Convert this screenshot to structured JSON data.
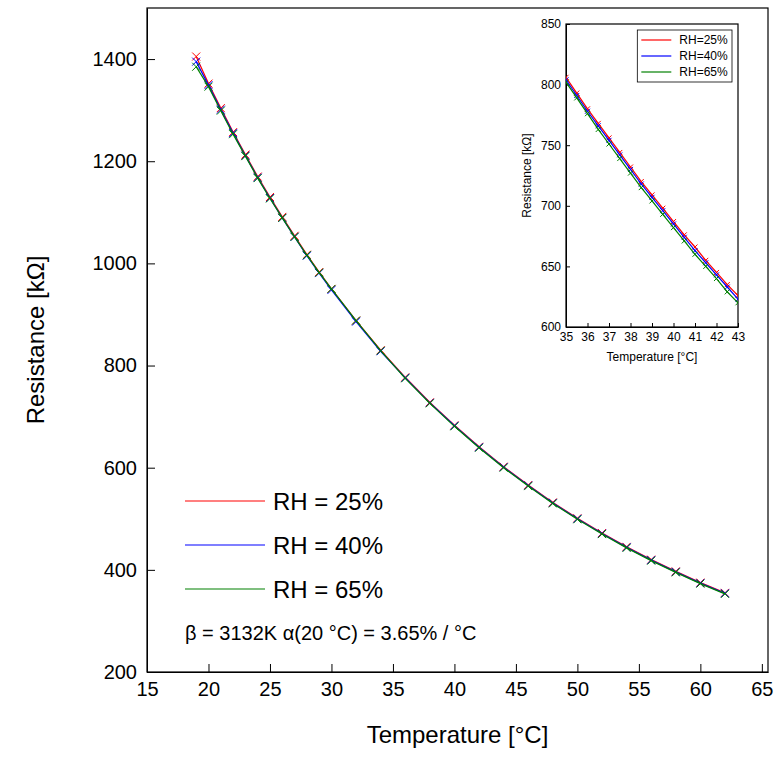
{
  "chart_data": [
    {
      "type": "line",
      "xlabel": "Temperature [°C]",
      "ylabel": "Resistance [kΩ]",
      "annotation": "β = 3132K  α(20 °C) = 3.65% / °C",
      "x": [
        19,
        20,
        21,
        22,
        23,
        24,
        25,
        26,
        27,
        28,
        29,
        30,
        32,
        34,
        36,
        38,
        40,
        42,
        44,
        46,
        48,
        50,
        52,
        54,
        56,
        58,
        60,
        62
      ],
      "series": [
        {
          "name": "RH = 25%",
          "color": "#ff0000",
          "marker": "x",
          "line_style": "solid",
          "values": [
            1405,
            1352,
            1304,
            1257,
            1213,
            1170,
            1130,
            1091,
            1054,
            1017,
            983,
            950,
            888,
            830,
            777,
            728,
            683,
            641,
            602,
            566,
            532,
            501,
            472,
            445,
            420,
            397,
            375,
            355
          ]
        },
        {
          "name": "RH = 40%",
          "color": "#0000ff",
          "marker": "x",
          "line_style": "solid",
          "values": [
            1395,
            1349,
            1301,
            1255,
            1211,
            1168,
            1128,
            1089,
            1052,
            1015,
            981,
            948,
            886,
            828,
            776,
            727,
            682,
            640,
            601,
            565,
            531,
            500,
            471,
            444,
            419,
            396,
            374,
            354
          ]
        },
        {
          "name": "RH = 65%",
          "color": "#008000",
          "marker": "x",
          "line_style": "solid",
          "values": [
            1385,
            1346,
            1299,
            1253,
            1210,
            1167,
            1127,
            1089,
            1052,
            1016,
            982,
            950,
            888,
            829,
            775,
            726,
            681,
            639,
            600,
            564,
            530,
            499,
            470,
            443,
            418,
            395,
            373,
            353
          ]
        }
      ],
      "xlim": [
        15,
        65.5
      ],
      "xticks": [
        15,
        20,
        25,
        30,
        35,
        40,
        45,
        50,
        55,
        60,
        65
      ],
      "ylim": [
        200,
        1500
      ],
      "yticks": [
        200,
        400,
        600,
        800,
        1000,
        1200,
        1400
      ],
      "legend": "lower left"
    },
    {
      "type": "line",
      "xlabel": "Temperature [°C]",
      "ylabel": "Resistance [kΩ]",
      "x": [
        35,
        35.5,
        36,
        36.5,
        37,
        37.5,
        38,
        38.5,
        39,
        39.5,
        40,
        40.5,
        41,
        41.5,
        42,
        42.5,
        43
      ],
      "series": [
        {
          "name": "RH=25%",
          "color": "#ff0000",
          "marker": "x",
          "line_style": "solid",
          "values": [
            806,
            793,
            780,
            768,
            756,
            744,
            732,
            720,
            709,
            698,
            687,
            676,
            666,
            655,
            645,
            635,
            626
          ]
        },
        {
          "name": "RH=40%",
          "color": "#0000ff",
          "marker": "x",
          "line_style": "solid",
          "values": [
            804,
            791,
            778,
            766,
            754,
            742,
            730,
            718,
            707,
            696,
            685,
            674,
            663,
            653,
            643,
            633,
            623
          ]
        },
        {
          "name": "RH=65%",
          "color": "#008000",
          "marker": "x",
          "line_style": "solid",
          "values": [
            802,
            789,
            776,
            763,
            751,
            739,
            727,
            715,
            704,
            693,
            682,
            671,
            660,
            650,
            640,
            629,
            620
          ]
        }
      ],
      "xlim": [
        35,
        43
      ],
      "xticks": [
        35,
        36,
        37,
        38,
        39,
        40,
        41,
        42,
        43
      ],
      "ylim": [
        600,
        850
      ],
      "yticks": [
        600,
        650,
        700,
        750,
        800,
        850
      ],
      "legend": "upper right"
    }
  ]
}
